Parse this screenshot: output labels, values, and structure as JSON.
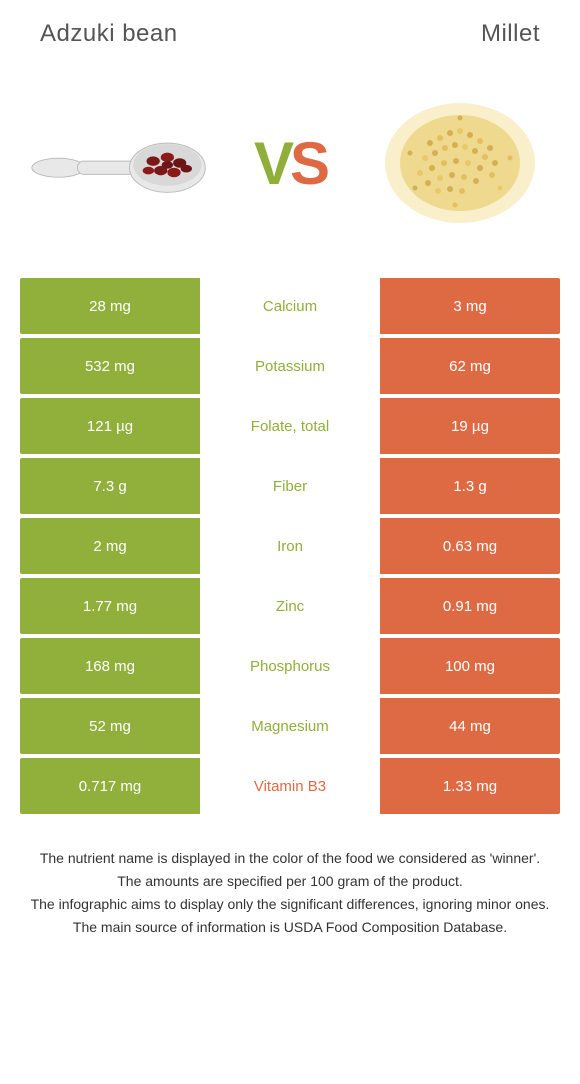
{
  "header": {
    "left_title": "Adzuki bean",
    "right_title": "Millet"
  },
  "vs": {
    "v": "V",
    "s": "S"
  },
  "colors": {
    "left_bg": "#90af3b",
    "right_bg": "#de6a44",
    "left_text": "#90af3b",
    "right_text": "#de6a44",
    "white": "#ffffff"
  },
  "rows": [
    {
      "left": "28 mg",
      "label": "Calcium",
      "right": "3 mg",
      "winner": "left"
    },
    {
      "left": "532 mg",
      "label": "Potassium",
      "right": "62 mg",
      "winner": "left"
    },
    {
      "left": "121 µg",
      "label": "Folate, total",
      "right": "19 µg",
      "winner": "left"
    },
    {
      "left": "7.3 g",
      "label": "Fiber",
      "right": "1.3 g",
      "winner": "left"
    },
    {
      "left": "2 mg",
      "label": "Iron",
      "right": "0.63 mg",
      "winner": "left"
    },
    {
      "left": "1.77 mg",
      "label": "Zinc",
      "right": "0.91 mg",
      "winner": "left"
    },
    {
      "left": "168 mg",
      "label": "Phosphorus",
      "right": "100 mg",
      "winner": "left"
    },
    {
      "left": "52 mg",
      "label": "Magnesium",
      "right": "44 mg",
      "winner": "left"
    },
    {
      "left": "0.717 mg",
      "label": "Vitamin B3",
      "right": "1.33 mg",
      "winner": "right"
    }
  ],
  "footer": {
    "line1": "The nutrient name is displayed in the color of the food we considered as 'winner'.",
    "line2": "The amounts are specified per 100 gram of the product.",
    "line3": "The infographic aims to display only the significant differences, ignoring minor ones.",
    "line4": "The main source of information is USDA Food Composition Database."
  }
}
